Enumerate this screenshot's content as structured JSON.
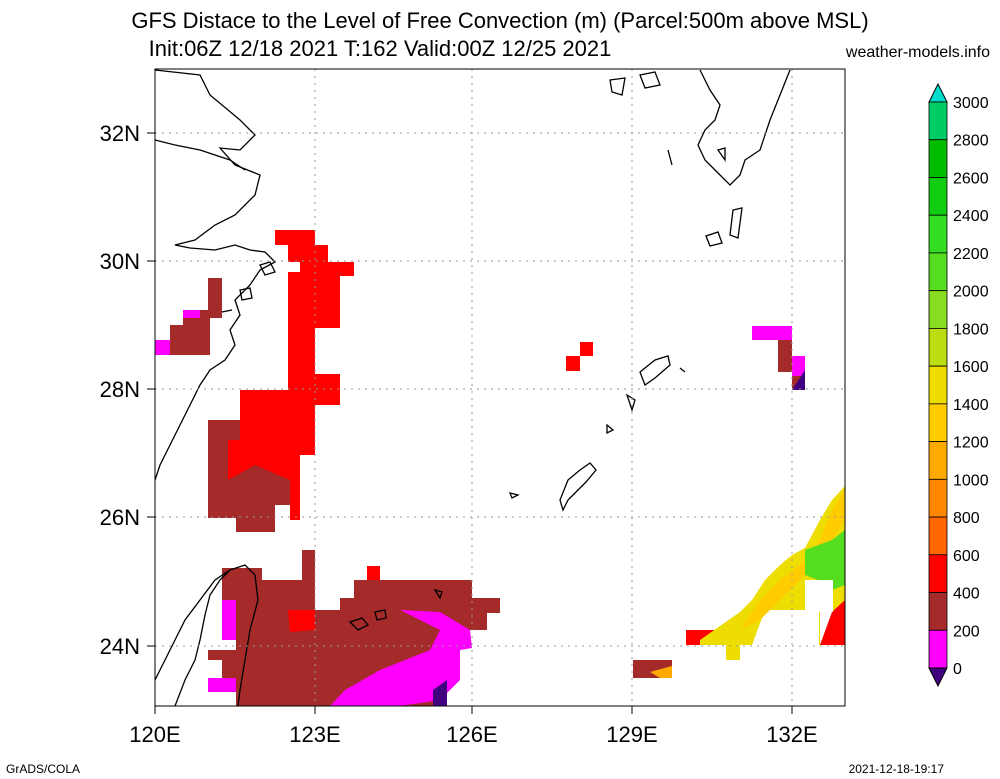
{
  "header": {
    "title_line1": "GFS Distace to the Level of Free Convection (m) (Parcel:500m above MSL)",
    "title_line2": "Init:06Z 12/18 2021 T:162 Valid:00Z 12/25 2021",
    "site": "weather-models.info"
  },
  "map": {
    "lat_labels": [
      "32N",
      "30N",
      "28N",
      "26N",
      "24N"
    ],
    "lon_labels": [
      "120E",
      "123E",
      "126E",
      "129E",
      "132E"
    ],
    "lat_values": [
      32,
      30,
      28,
      26,
      24
    ],
    "lon_values": [
      120,
      123,
      126,
      129,
      132
    ],
    "extent": {
      "lon_min": 120,
      "lon_max": 133,
      "lat_min": 23,
      "lat_max": 33
    }
  },
  "colorbar": {
    "labels": [
      "3000",
      "2800",
      "2600",
      "2400",
      "2200",
      "2000",
      "1800",
      "1600",
      "1400",
      "1200",
      "1000",
      "800",
      "600",
      "400",
      "200",
      "0"
    ],
    "colors": [
      "#00ddcc",
      "#00cc66",
      "#00bb00",
      "#11cc11",
      "#33dd22",
      "#55dd22",
      "#88dd22",
      "#bbdd11",
      "#eedd00",
      "#ffcc00",
      "#ffaa00",
      "#ff8800",
      "#ff6600",
      "#ff0000",
      "#a52a2a",
      "#ff00ff",
      "#400080"
    ]
  },
  "footer": {
    "left": "GrADS/COLA",
    "right": "2021-12-18-19:17"
  }
}
